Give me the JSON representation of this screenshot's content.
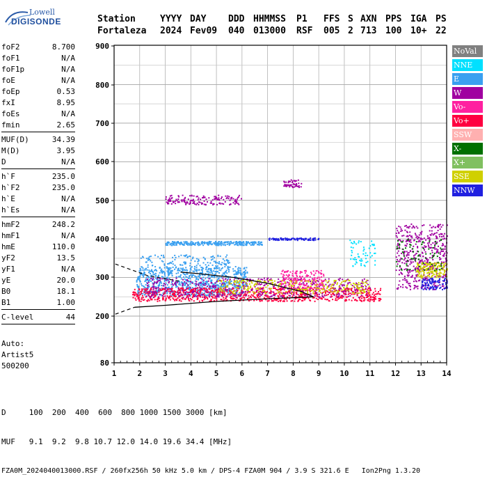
{
  "logo": {
    "line1": "Lowell",
    "line2": "DIGISONDE"
  },
  "header": {
    "labels": [
      "Station",
      "YYYY",
      "DAY",
      "DDD",
      "HHMMSS",
      "P1",
      "FFS",
      "S",
      "AXN",
      "PPS",
      "IGA",
      "PS"
    ],
    "values": [
      "Fortaleza",
      "2024",
      "Fev09",
      "040",
      "013000",
      "RSF",
      "005",
      "2",
      "713",
      "100",
      "10+",
      "22"
    ]
  },
  "params": {
    "group1": [
      {
        "name": "foF2",
        "value": "8.700"
      },
      {
        "name": "foF1",
        "value": "N/A"
      },
      {
        "name": "foF1p",
        "value": "N/A"
      },
      {
        "name": "foE",
        "value": "N/A"
      },
      {
        "name": "foEp",
        "value": "0.53"
      },
      {
        "name": "fxI",
        "value": "8.95"
      },
      {
        "name": "foEs",
        "value": "N/A"
      },
      {
        "name": "fmin",
        "value": "2.65"
      }
    ],
    "group2": [
      {
        "name": "MUF(D)",
        "value": "34.39"
      },
      {
        "name": "M(D)",
        "value": "3.95"
      },
      {
        "name": "D",
        "value": "N/A"
      }
    ],
    "group3": [
      {
        "name": "h`F",
        "value": "235.0"
      },
      {
        "name": "h`F2",
        "value": "235.0"
      },
      {
        "name": "h`E",
        "value": "N/A"
      },
      {
        "name": "h`Es",
        "value": "N/A"
      }
    ],
    "group4": [
      {
        "name": "hmF2",
        "value": "248.2"
      },
      {
        "name": "hmF1",
        "value": "N/A"
      },
      {
        "name": "hmE",
        "value": "110.0"
      },
      {
        "name": "yF2",
        "value": "13.5"
      },
      {
        "name": "yF1",
        "value": "N/A"
      },
      {
        "name": "yE",
        "value": "20.0"
      },
      {
        "name": "B0",
        "value": "18.1"
      },
      {
        "name": "B1",
        "value": "1.00"
      }
    ],
    "group5": [
      {
        "name": "C-level",
        "value": "44"
      }
    ]
  },
  "auto": {
    "line1": "Auto:",
    "line2": "Artist5",
    "line3": "500200"
  },
  "footer": {
    "d_row": "D     100  200  400  600  800 1000 1500 3000 [km]",
    "muf_row": "MUF   9.1  9.2  9.8 10.7 12.0 14.0 19.6 34.4 [MHz]",
    "info_row": "FZA0M_2024040013000.RSF / 260fx256h 50 kHz 5.0 km / DPS-4 FZA0M 904 / 3.9 S 321.6 E   Ion2Png 1.3.20"
  },
  "legend": [
    {
      "label": "NoVal",
      "color": "#808080"
    },
    {
      "label": "NNE",
      "color": "#00e0ff"
    },
    {
      "label": "E",
      "color": "#3aa0f0"
    },
    {
      "label": "W",
      "color": "#a000a0"
    },
    {
      "label": "Vo-",
      "color": "#ff20a0"
    },
    {
      "label": "Vo+",
      "color": "#ff0040"
    },
    {
      "label": "SSW",
      "color": "#ffb0b0"
    },
    {
      "label": "X-",
      "color": "#007000"
    },
    {
      "label": "X+",
      "color": "#80c060"
    },
    {
      "label": "SSE",
      "color": "#d0d000"
    },
    {
      "label": "NNW",
      "color": "#2020e0"
    }
  ],
  "chart_data": {
    "type": "scatter",
    "title": "",
    "xlabel": "",
    "ylabel": "",
    "xlim": [
      1,
      14
    ],
    "ylim": [
      80,
      900
    ],
    "x_ticks": [
      1,
      2,
      3,
      4,
      5,
      6,
      7,
      8,
      9,
      10,
      11,
      12,
      13,
      14
    ],
    "y_ticks": [
      80,
      200,
      300,
      400,
      500,
      600,
      700,
      800,
      900
    ],
    "grid": true,
    "clusters": [
      {
        "color_code": "E",
        "x_range": [
          1.85,
          6.2
        ],
        "h_range": [
          255,
          330
        ],
        "density": 900
      },
      {
        "color_code": "E",
        "x_range": [
          3.0,
          6.8
        ],
        "h_range": [
          385,
          395
        ],
        "density": 260
      },
      {
        "color_code": "E",
        "x_range": [
          2.0,
          5.5
        ],
        "h_range": [
          330,
          360
        ],
        "density": 120
      },
      {
        "color_code": "Vo+",
        "x_range": [
          1.7,
          11.4
        ],
        "h_range": [
          240,
          275
        ],
        "density": 900
      },
      {
        "color_code": "W",
        "x_range": [
          2.2,
          11.0
        ],
        "h_range": [
          250,
          300
        ],
        "density": 500
      },
      {
        "color_code": "Vo-",
        "x_range": [
          7.5,
          9.2
        ],
        "h_range": [
          270,
          320
        ],
        "density": 200
      },
      {
        "color_code": "SSE",
        "x_range": [
          5.0,
          11.0
        ],
        "h_range": [
          260,
          295
        ],
        "density": 260
      },
      {
        "color_code": "NNW",
        "x_range": [
          7.0,
          9.0
        ],
        "h_range": [
          398,
          404
        ],
        "density": 90
      },
      {
        "color_code": "W",
        "x_range": [
          3.0,
          6.0
        ],
        "h_range": [
          490,
          515
        ],
        "density": 160
      },
      {
        "color_code": "W",
        "x_range": [
          7.6,
          8.3
        ],
        "h_range": [
          535,
          555
        ],
        "density": 50
      },
      {
        "color_code": "W",
        "x_range": [
          12.0,
          14.0
        ],
        "h_range": [
          270,
          440
        ],
        "density": 500
      },
      {
        "color_code": "SSE",
        "x_range": [
          12.8,
          14.0
        ],
        "h_range": [
          300,
          340
        ],
        "density": 160
      },
      {
        "color_code": "X-",
        "x_range": [
          12.0,
          13.8
        ],
        "h_range": [
          320,
          400
        ],
        "density": 80
      },
      {
        "color_code": "NNE",
        "x_range": [
          10.2,
          11.2
        ],
        "h_range": [
          330,
          400
        ],
        "density": 60
      },
      {
        "color_code": "NNW",
        "x_range": [
          13.0,
          14.0
        ],
        "h_range": [
          270,
          300
        ],
        "density": 90
      }
    ],
    "profile_solid": [
      [
        1.8,
        223
      ],
      [
        3,
        228
      ],
      [
        5,
        238
      ],
      [
        7,
        245
      ],
      [
        8.8,
        250
      ],
      [
        8.3,
        264
      ],
      [
        7,
        285
      ],
      [
        5.7,
        300
      ],
      [
        4.3,
        310
      ],
      [
        3.6,
        314
      ]
    ],
    "profile_dashed": [
      [
        1.05,
        205
      ],
      [
        1.8,
        223
      ]
    ],
    "profile_dashed2": [
      [
        1.05,
        335
      ],
      [
        2.3,
        305
      ],
      [
        3.6,
        290
      ]
    ]
  }
}
